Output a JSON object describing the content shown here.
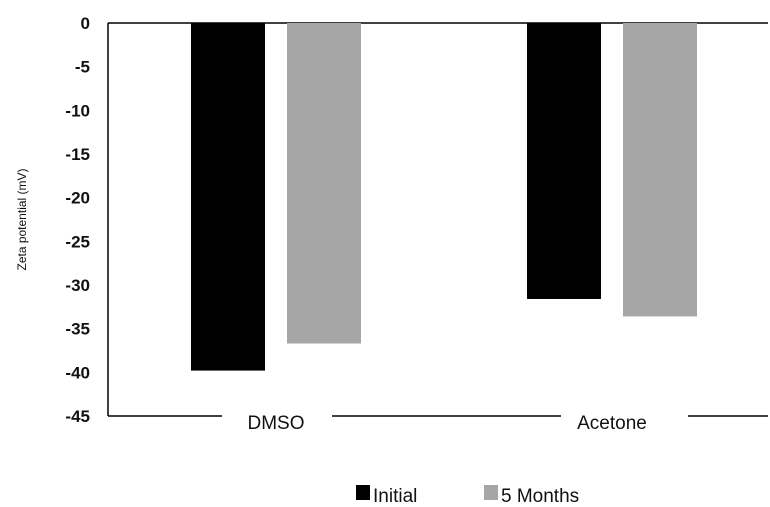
{
  "chart_data": {
    "type": "bar",
    "categories": [
      "DMSO",
      "Acetone"
    ],
    "series": [
      {
        "name": "Initial",
        "values": [
          -39.8,
          -31.6
        ],
        "color": "#000000"
      },
      {
        "name": "5 Months",
        "values": [
          -36.7,
          -33.6
        ],
        "color": "#a6a6a6"
      }
    ],
    "ylabel": "Zeta potential (mV)",
    "ylim": [
      -45,
      0
    ],
    "yticks": [
      0,
      -5,
      -10,
      -15,
      -20,
      -25,
      -30,
      -35,
      -40,
      -45
    ],
    "grid": false,
    "legend_position": "bottom"
  }
}
